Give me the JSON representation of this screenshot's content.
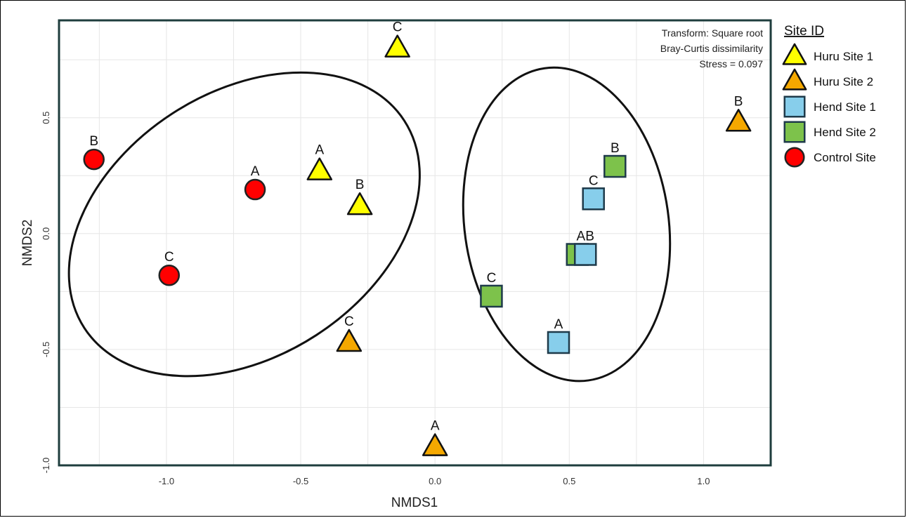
{
  "chart_data": {
    "type": "scatter",
    "xlabel": "NMDS1",
    "ylabel": "NMDS2",
    "xlim": [
      -1.4,
      1.25
    ],
    "ylim": [
      -1.0,
      0.92
    ],
    "xticks": [
      -1.0,
      -0.5,
      0.0,
      0.5,
      1.0
    ],
    "yticks": [
      -1.0,
      -0.5,
      0.0,
      0.5
    ],
    "xtick_labels": [
      "-1.0",
      "-0.5",
      "0.0",
      "0.5",
      "1.0"
    ],
    "ytick_labels": [
      "-1.0",
      "-0.5",
      "0.0",
      "0.5"
    ],
    "grid": true,
    "annotations": [
      "Transform: Square root",
      "Bray-Curtis dissimilarity",
      "Stress = 0.097"
    ],
    "legend": {
      "title": "Site ID",
      "placement": "right",
      "entries": [
        {
          "name": "Huru Site 1",
          "shape": "triangle",
          "color": "#FFFF00"
        },
        {
          "name": "Huru Site 2",
          "shape": "triangle",
          "color": "#F5A800"
        },
        {
          "name": "Hend Site 1",
          "shape": "square",
          "color": "#87CEEB"
        },
        {
          "name": "Hend Site 2",
          "shape": "square",
          "color": "#7DC24B"
        },
        {
          "name": "Control Site",
          "shape": "circle",
          "color": "#FF0000"
        }
      ]
    },
    "series": [
      {
        "name": "Huru Site 1",
        "shape": "triangle",
        "color": "#FFFF00",
        "points": [
          {
            "x": -0.43,
            "y": 0.27,
            "label": "A"
          },
          {
            "x": -0.28,
            "y": 0.12,
            "label": "B"
          },
          {
            "x": -0.14,
            "y": 0.8,
            "label": "C"
          }
        ]
      },
      {
        "name": "Huru Site 2",
        "shape": "triangle",
        "color": "#F5A800",
        "points": [
          {
            "x": 0.0,
            "y": -0.92,
            "label": "A"
          },
          {
            "x": 1.13,
            "y": 0.48,
            "label": "B"
          },
          {
            "x": -0.32,
            "y": -0.47,
            "label": "C"
          }
        ]
      },
      {
        "name": "Hend Site 2",
        "shape": "square",
        "color": "#7DC24B",
        "points": [
          {
            "x": 0.67,
            "y": 0.29,
            "label": "B"
          },
          {
            "x": 0.53,
            "y": -0.09,
            "label": ""
          },
          {
            "x": 0.21,
            "y": -0.27,
            "label": "C"
          }
        ]
      },
      {
        "name": "Hend Site 1",
        "shape": "square",
        "color": "#87CEEB",
        "points": [
          {
            "x": 0.59,
            "y": 0.15,
            "label": "C"
          },
          {
            "x": 0.56,
            "y": -0.09,
            "label": "AB"
          },
          {
            "x": 0.46,
            "y": -0.47,
            "label": "A"
          }
        ]
      },
      {
        "name": "Control Site",
        "shape": "circle",
        "color": "#FF0000",
        "points": [
          {
            "x": -1.27,
            "y": 0.32,
            "label": "B"
          },
          {
            "x": -0.67,
            "y": 0.19,
            "label": "A"
          },
          {
            "x": -0.99,
            "y": -0.18,
            "label": "C"
          }
        ]
      }
    ],
    "ellipses": [
      {
        "cx": -0.71,
        "cy": 0.04,
        "rx": 0.71,
        "ry": 0.57,
        "rotation_deg": 33
      },
      {
        "cx": 0.49,
        "cy": 0.04,
        "rx": 0.38,
        "ry": 0.68,
        "rotation_deg": 8
      }
    ]
  }
}
